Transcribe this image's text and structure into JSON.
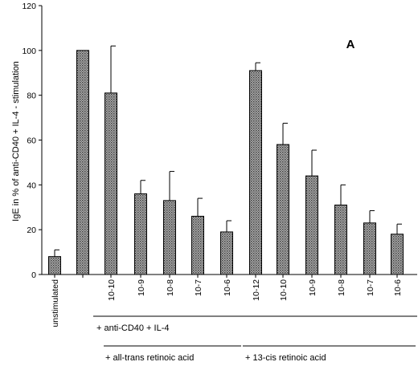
{
  "chart_data": {
    "type": "bar",
    "title": "",
    "panel_label": "A",
    "ylabel": "IgE in % of anti-CD40 + IL-4 - stimulation",
    "xlabel": "",
    "ylim": [
      0,
      120
    ],
    "yticks": [
      0,
      20,
      40,
      60,
      80,
      100,
      120
    ],
    "categories": [
      "unstimulated",
      "",
      "10-10",
      "10-9",
      "10-8",
      "10-7",
      "10-6",
      "10-12",
      "10-10",
      "10-9",
      "10-8",
      "10-7",
      "10-6"
    ],
    "values": [
      8,
      100,
      81,
      36,
      33,
      26,
      19,
      91,
      58,
      44,
      31,
      23,
      18
    ],
    "error": [
      3,
      0,
      21,
      6,
      13,
      8,
      5,
      3.5,
      9.5,
      11.5,
      9,
      5.5,
      4.5
    ],
    "grid": false,
    "legend": "none",
    "bar_color": "#8a8a8a",
    "groups": [
      {
        "label": "+ anti-CD40 + IL-4"
      },
      {
        "label": "+ all-trans retinoic acid"
      },
      {
        "label": "+ 13-cis retinoic acid"
      }
    ]
  }
}
